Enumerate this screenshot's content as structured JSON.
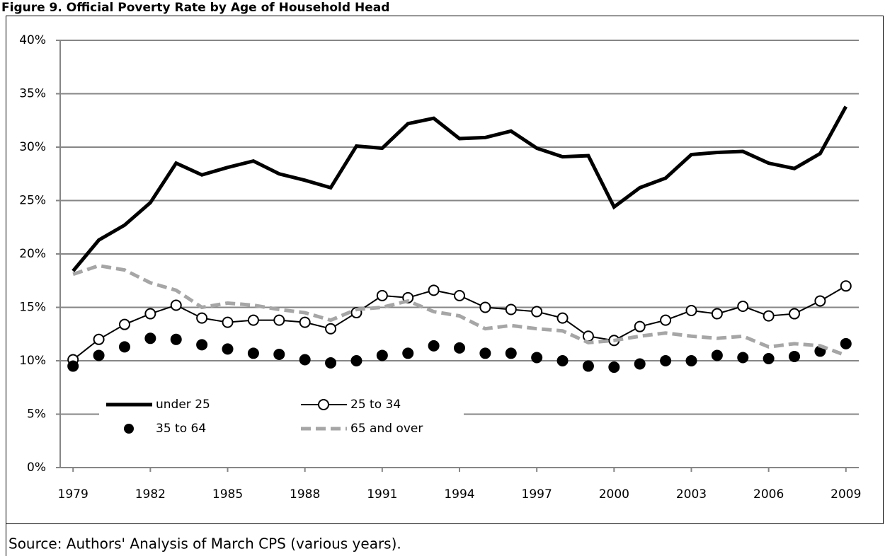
{
  "chart_data": {
    "type": "line",
    "title": "Figure 9. Official Poverty Rate by Age of Household Head",
    "source": "Source: Authors' Analysis of March CPS (various years).",
    "x": [
      1979,
      1980,
      1981,
      1982,
      1983,
      1984,
      1985,
      1986,
      1987,
      1988,
      1989,
      1990,
      1991,
      1992,
      1993,
      1994,
      1995,
      1996,
      1997,
      1998,
      1999,
      2000,
      2001,
      2002,
      2003,
      2004,
      2005,
      2006,
      2007,
      2008,
      2009
    ],
    "xlim": [
      1978.5,
      2009.5
    ],
    "xticks": [
      1979,
      1982,
      1985,
      1988,
      1991,
      1994,
      1997,
      2000,
      2003,
      2006,
      2009
    ],
    "ylim": [
      0,
      40
    ],
    "yticks": [
      {
        "value": 0,
        "label": "0%"
      },
      {
        "value": 5,
        "label": "5%"
      },
      {
        "value": 10,
        "label": "10%"
      },
      {
        "value": 15,
        "label": "15%"
      },
      {
        "value": 20,
        "label": "20%"
      },
      {
        "value": 25,
        "label": "25%"
      },
      {
        "value": 30,
        "label": "30%"
      },
      {
        "value": 35,
        "label": "35%"
      },
      {
        "value": 40,
        "label": "40%"
      }
    ],
    "grid": true,
    "legend": "bottom-left",
    "series": [
      {
        "name": "under 25",
        "color": "#000000",
        "style": "line",
        "values": [
          18.4,
          21.3,
          22.7,
          24.8,
          28.5,
          27.4,
          28.1,
          28.7,
          27.5,
          26.9,
          26.2,
          30.1,
          29.9,
          32.2,
          32.7,
          30.8,
          30.9,
          31.5,
          29.9,
          29.1,
          29.2,
          24.4,
          26.2,
          27.1,
          29.3,
          29.5,
          29.6,
          28.5,
          28.0,
          29.4,
          33.8
        ]
      },
      {
        "name": "25 to 34",
        "color": "#000000",
        "style": "line-marker",
        "values": [
          10.1,
          12.0,
          13.4,
          14.4,
          15.2,
          14.0,
          13.6,
          13.8,
          13.8,
          13.6,
          13.0,
          14.5,
          16.1,
          15.9,
          16.6,
          16.1,
          15.0,
          14.8,
          14.6,
          14.0,
          12.3,
          11.9,
          13.2,
          13.8,
          14.7,
          14.4,
          15.1,
          14.2,
          14.4,
          15.6,
          17.0
        ]
      },
      {
        "name": "35 to 64",
        "color": "#000000",
        "style": "marker",
        "values": [
          9.5,
          10.5,
          11.3,
          12.1,
          12.0,
          11.5,
          11.1,
          10.7,
          10.6,
          10.1,
          9.8,
          10.0,
          10.5,
          10.7,
          11.4,
          11.2,
          10.7,
          10.7,
          10.3,
          10.0,
          9.5,
          9.4,
          9.7,
          10.0,
          10.0,
          10.5,
          10.3,
          10.2,
          10.4,
          10.9,
          11.6
        ]
      },
      {
        "name": "65 and over",
        "color": "#a6a6a6",
        "style": "dashed",
        "values": [
          18.1,
          18.9,
          18.5,
          17.3,
          16.6,
          15.0,
          15.4,
          15.2,
          14.8,
          14.5,
          13.8,
          14.8,
          15.0,
          15.6,
          14.6,
          14.2,
          13.0,
          13.3,
          13.0,
          12.8,
          11.7,
          11.9,
          12.3,
          12.6,
          12.3,
          12.1,
          12.3,
          11.3,
          11.6,
          11.4,
          10.5
        ]
      }
    ]
  }
}
